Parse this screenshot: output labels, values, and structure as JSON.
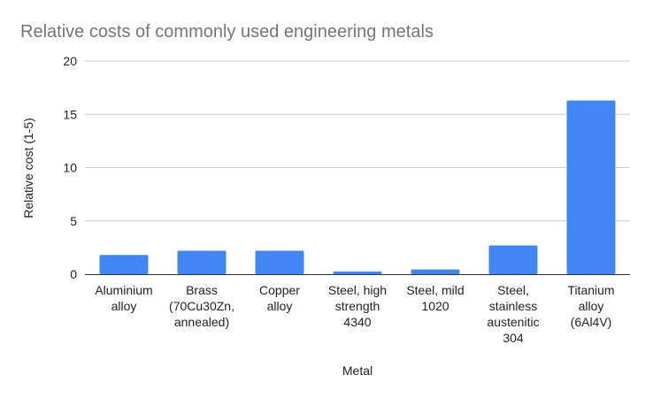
{
  "chart_data": {
    "type": "bar",
    "title": "Relative costs of commonly used engineering metals",
    "xlabel": "Metal",
    "ylabel": "Relative cost (1-5)",
    "categories": [
      [
        "Aluminium",
        "alloy"
      ],
      [
        "Brass",
        "(70Cu30Zn,",
        "annealed)"
      ],
      [
        "Copper",
        "alloy"
      ],
      [
        "Steel, high",
        "strength",
        "4340"
      ],
      [
        "Steel, mild",
        "1020"
      ],
      [
        "Steel,",
        "stainless",
        "austenitic",
        "304"
      ],
      [
        "Titanium",
        "alloy",
        "(6Al4V)"
      ]
    ],
    "values": [
      1.8,
      2.2,
      2.2,
      0.25,
      0.45,
      2.7,
      16.3
    ],
    "ylim": [
      0,
      20
    ],
    "yticks": [
      0,
      5,
      10,
      15,
      20
    ],
    "grid": true,
    "bar_color": "#4285F4",
    "grid_color": "#CCCCCC",
    "axis_color": "#333333"
  }
}
